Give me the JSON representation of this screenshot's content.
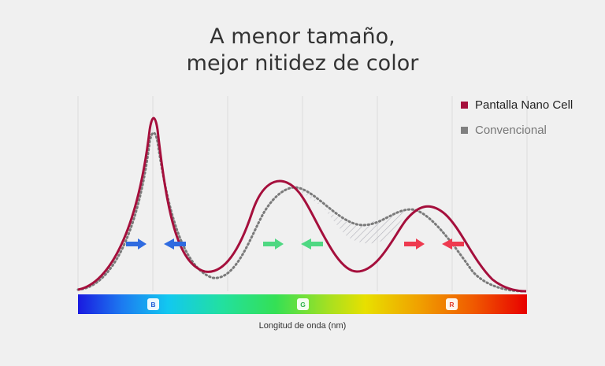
{
  "title": {
    "line1": "A menor tamaño,",
    "line2": "mejor nitidez de color"
  },
  "legend": [
    {
      "label": "Pantalla Nano Cell",
      "color": "#a50f3c"
    },
    {
      "label": "Convencional",
      "color": "#808080"
    }
  ],
  "spectrum_labels": [
    {
      "label": "B",
      "color": "#1c5ad6"
    },
    {
      "label": "G",
      "color": "#2ab048"
    },
    {
      "label": "R",
      "color": "#e23a2a"
    }
  ],
  "arrow_colors": {
    "blue": "#2f6be0",
    "green": "#4fd882",
    "red": "#ee3a4f"
  },
  "xlabel": "Longitud de onda (nm)"
}
